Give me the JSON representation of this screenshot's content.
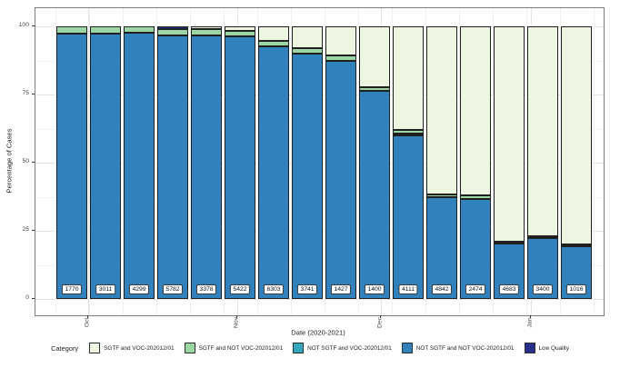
{
  "chart_data": {
    "type": "stacked_bar_percentage",
    "ylabel": "Percentage of Cases",
    "xlabel": "Date (2020-2021)",
    "legend_title": "Category",
    "ylim": [
      0,
      100
    ],
    "yticks": [
      0,
      25,
      50,
      75,
      100
    ],
    "yticks_minor": [
      12.5,
      37.5,
      62.5,
      87.5
    ],
    "xticks": [
      {
        "label": "Oct",
        "pos_pct": 9.3
      },
      {
        "label": "Nov",
        "pos_pct": 35.5
      },
      {
        "label": "Dec",
        "pos_pct": 60.8
      },
      {
        "label": "Jan",
        "pos_pct": 87.2
      }
    ],
    "palette": {
      "sgtf_voc": "#edf6e1",
      "sgtf_not_voc": "#9cd6a4",
      "not_sgtf_voc": "#33a7bb",
      "not_sgtf_not_voc": "#3081bc",
      "low_quality": "#27308c"
    },
    "legend": [
      {
        "key": "sgtf_voc",
        "label": "SGTF and VOC-202012/01"
      },
      {
        "key": "sgtf_not_voc",
        "label": "SGTF and NOT VOC-202012/01"
      },
      {
        "key": "not_sgtf_voc",
        "label": "NOT SGTF and VOC-202012/01"
      },
      {
        "key": "not_sgtf_not_voc",
        "label": "NOT SGTF and NOT VOC-202012/01"
      },
      {
        "key": "low_quality",
        "label": "Low Quality"
      }
    ],
    "bars": [
      {
        "count": "1770",
        "segments": [
          {
            "key": "not_sgtf_not_voc",
            "pct": 97.5
          },
          {
            "key": "sgtf_not_voc",
            "pct": 2.5
          }
        ]
      },
      {
        "count": "3011",
        "segments": [
          {
            "key": "not_sgtf_not_voc",
            "pct": 97.5
          },
          {
            "key": "sgtf_not_voc",
            "pct": 2.5
          }
        ]
      },
      {
        "count": "4299",
        "segments": [
          {
            "key": "not_sgtf_not_voc",
            "pct": 97.6
          },
          {
            "key": "sgtf_not_voc",
            "pct": 2.4
          }
        ]
      },
      {
        "count": "5782",
        "segments": [
          {
            "key": "not_sgtf_not_voc",
            "pct": 96.6
          },
          {
            "key": "sgtf_not_voc",
            "pct": 2.4
          },
          {
            "key": "low_quality",
            "pct": 1.0
          }
        ]
      },
      {
        "count": "3378",
        "segments": [
          {
            "key": "not_sgtf_not_voc",
            "pct": 96.7
          },
          {
            "key": "sgtf_not_voc",
            "pct": 2.3
          },
          {
            "key": "sgtf_voc",
            "pct": 1.0
          }
        ]
      },
      {
        "count": "5422",
        "segments": [
          {
            "key": "not_sgtf_not_voc",
            "pct": 96.2
          },
          {
            "key": "sgtf_not_voc",
            "pct": 2.2
          },
          {
            "key": "sgtf_voc",
            "pct": 1.6
          }
        ]
      },
      {
        "count": "6303",
        "segments": [
          {
            "key": "not_sgtf_not_voc",
            "pct": 92.8
          },
          {
            "key": "sgtf_not_voc",
            "pct": 2.0
          },
          {
            "key": "sgtf_voc",
            "pct": 5.2
          }
        ]
      },
      {
        "count": "3741",
        "segments": [
          {
            "key": "not_sgtf_not_voc",
            "pct": 90.0
          },
          {
            "key": "sgtf_not_voc",
            "pct": 2.0
          },
          {
            "key": "sgtf_voc",
            "pct": 8.0
          }
        ]
      },
      {
        "count": "1427",
        "segments": [
          {
            "key": "not_sgtf_not_voc",
            "pct": 87.3
          },
          {
            "key": "sgtf_not_voc",
            "pct": 2.0
          },
          {
            "key": "sgtf_voc",
            "pct": 10.7
          }
        ]
      },
      {
        "count": "1400",
        "segments": [
          {
            "key": "not_sgtf_not_voc",
            "pct": 76.3
          },
          {
            "key": "sgtf_not_voc",
            "pct": 1.4
          },
          {
            "key": "sgtf_voc",
            "pct": 22.3
          }
        ]
      },
      {
        "count": "4111",
        "segments": [
          {
            "key": "not_sgtf_not_voc",
            "pct": 60.0
          },
          {
            "key": "not_sgtf_voc",
            "pct": 0.5
          },
          {
            "key": "sgtf_not_voc",
            "pct": 1.5
          },
          {
            "key": "sgtf_voc",
            "pct": 38.0
          }
        ]
      },
      {
        "count": "4842",
        "segments": [
          {
            "key": "not_sgtf_not_voc",
            "pct": 37.3
          },
          {
            "key": "sgtf_not_voc",
            "pct": 1.2
          },
          {
            "key": "sgtf_voc",
            "pct": 61.5
          }
        ]
      },
      {
        "count": "2474",
        "segments": [
          {
            "key": "not_sgtf_not_voc",
            "pct": 36.8
          },
          {
            "key": "sgtf_not_voc",
            "pct": 1.2
          },
          {
            "key": "sgtf_voc",
            "pct": 62.0
          }
        ]
      },
      {
        "count": "4683",
        "segments": [
          {
            "key": "not_sgtf_not_voc",
            "pct": 20.3
          },
          {
            "key": "sgtf_not_voc",
            "pct": 0.7
          },
          {
            "key": "sgtf_voc",
            "pct": 79.0
          }
        ]
      },
      {
        "count": "3400",
        "segments": [
          {
            "key": "not_sgtf_not_voc",
            "pct": 22.3
          },
          {
            "key": "sgtf_not_voc",
            "pct": 0.7
          },
          {
            "key": "sgtf_voc",
            "pct": 77.0
          }
        ]
      },
      {
        "count": "1016",
        "segments": [
          {
            "key": "not_sgtf_not_voc",
            "pct": 19.3
          },
          {
            "key": "sgtf_not_voc",
            "pct": 0.7
          },
          {
            "key": "sgtf_voc",
            "pct": 80.0
          }
        ]
      }
    ]
  }
}
